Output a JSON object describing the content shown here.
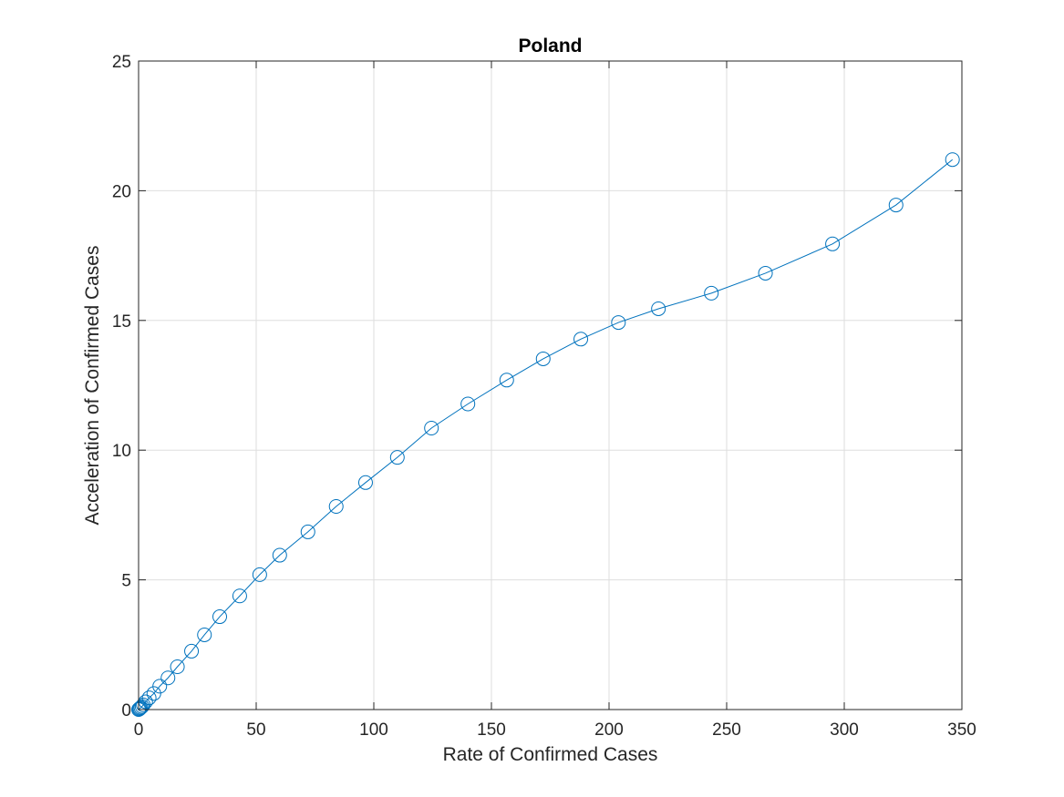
{
  "chart_data": {
    "type": "line",
    "title": "Poland",
    "xlabel": "Rate of Confirmed Cases",
    "ylabel": "Acceleration of Confirmed Cases",
    "xlim": [
      0,
      350
    ],
    "ylim": [
      0,
      25
    ],
    "xticks": [
      0,
      50,
      100,
      150,
      200,
      250,
      300,
      350
    ],
    "yticks": [
      0,
      5,
      10,
      15,
      20,
      25
    ],
    "grid": true,
    "marker": "circle",
    "series": [
      {
        "color": "#0072bd",
        "x": [
          0,
          0.3,
          0.6,
          1,
          1.5,
          2,
          3,
          4.5,
          6.5,
          9,
          12.5,
          16.5,
          22.5,
          28,
          34.5,
          43,
          51.5,
          60,
          72,
          84,
          96.5,
          110,
          124.5,
          140,
          156.5,
          172,
          188,
          204,
          221,
          243.5,
          266.5,
          295,
          322,
          346
        ],
        "y": [
          0,
          0.02,
          0.05,
          0.08,
          0.12,
          0.18,
          0.3,
          0.45,
          0.62,
          0.9,
          1.22,
          1.65,
          2.25,
          2.88,
          3.58,
          4.38,
          5.2,
          5.95,
          6.85,
          7.83,
          8.75,
          9.72,
          10.85,
          11.78,
          12.7,
          13.52,
          14.28,
          14.92,
          15.45,
          16.05,
          16.82,
          17.95,
          19.45,
          21.2
        ]
      }
    ]
  }
}
